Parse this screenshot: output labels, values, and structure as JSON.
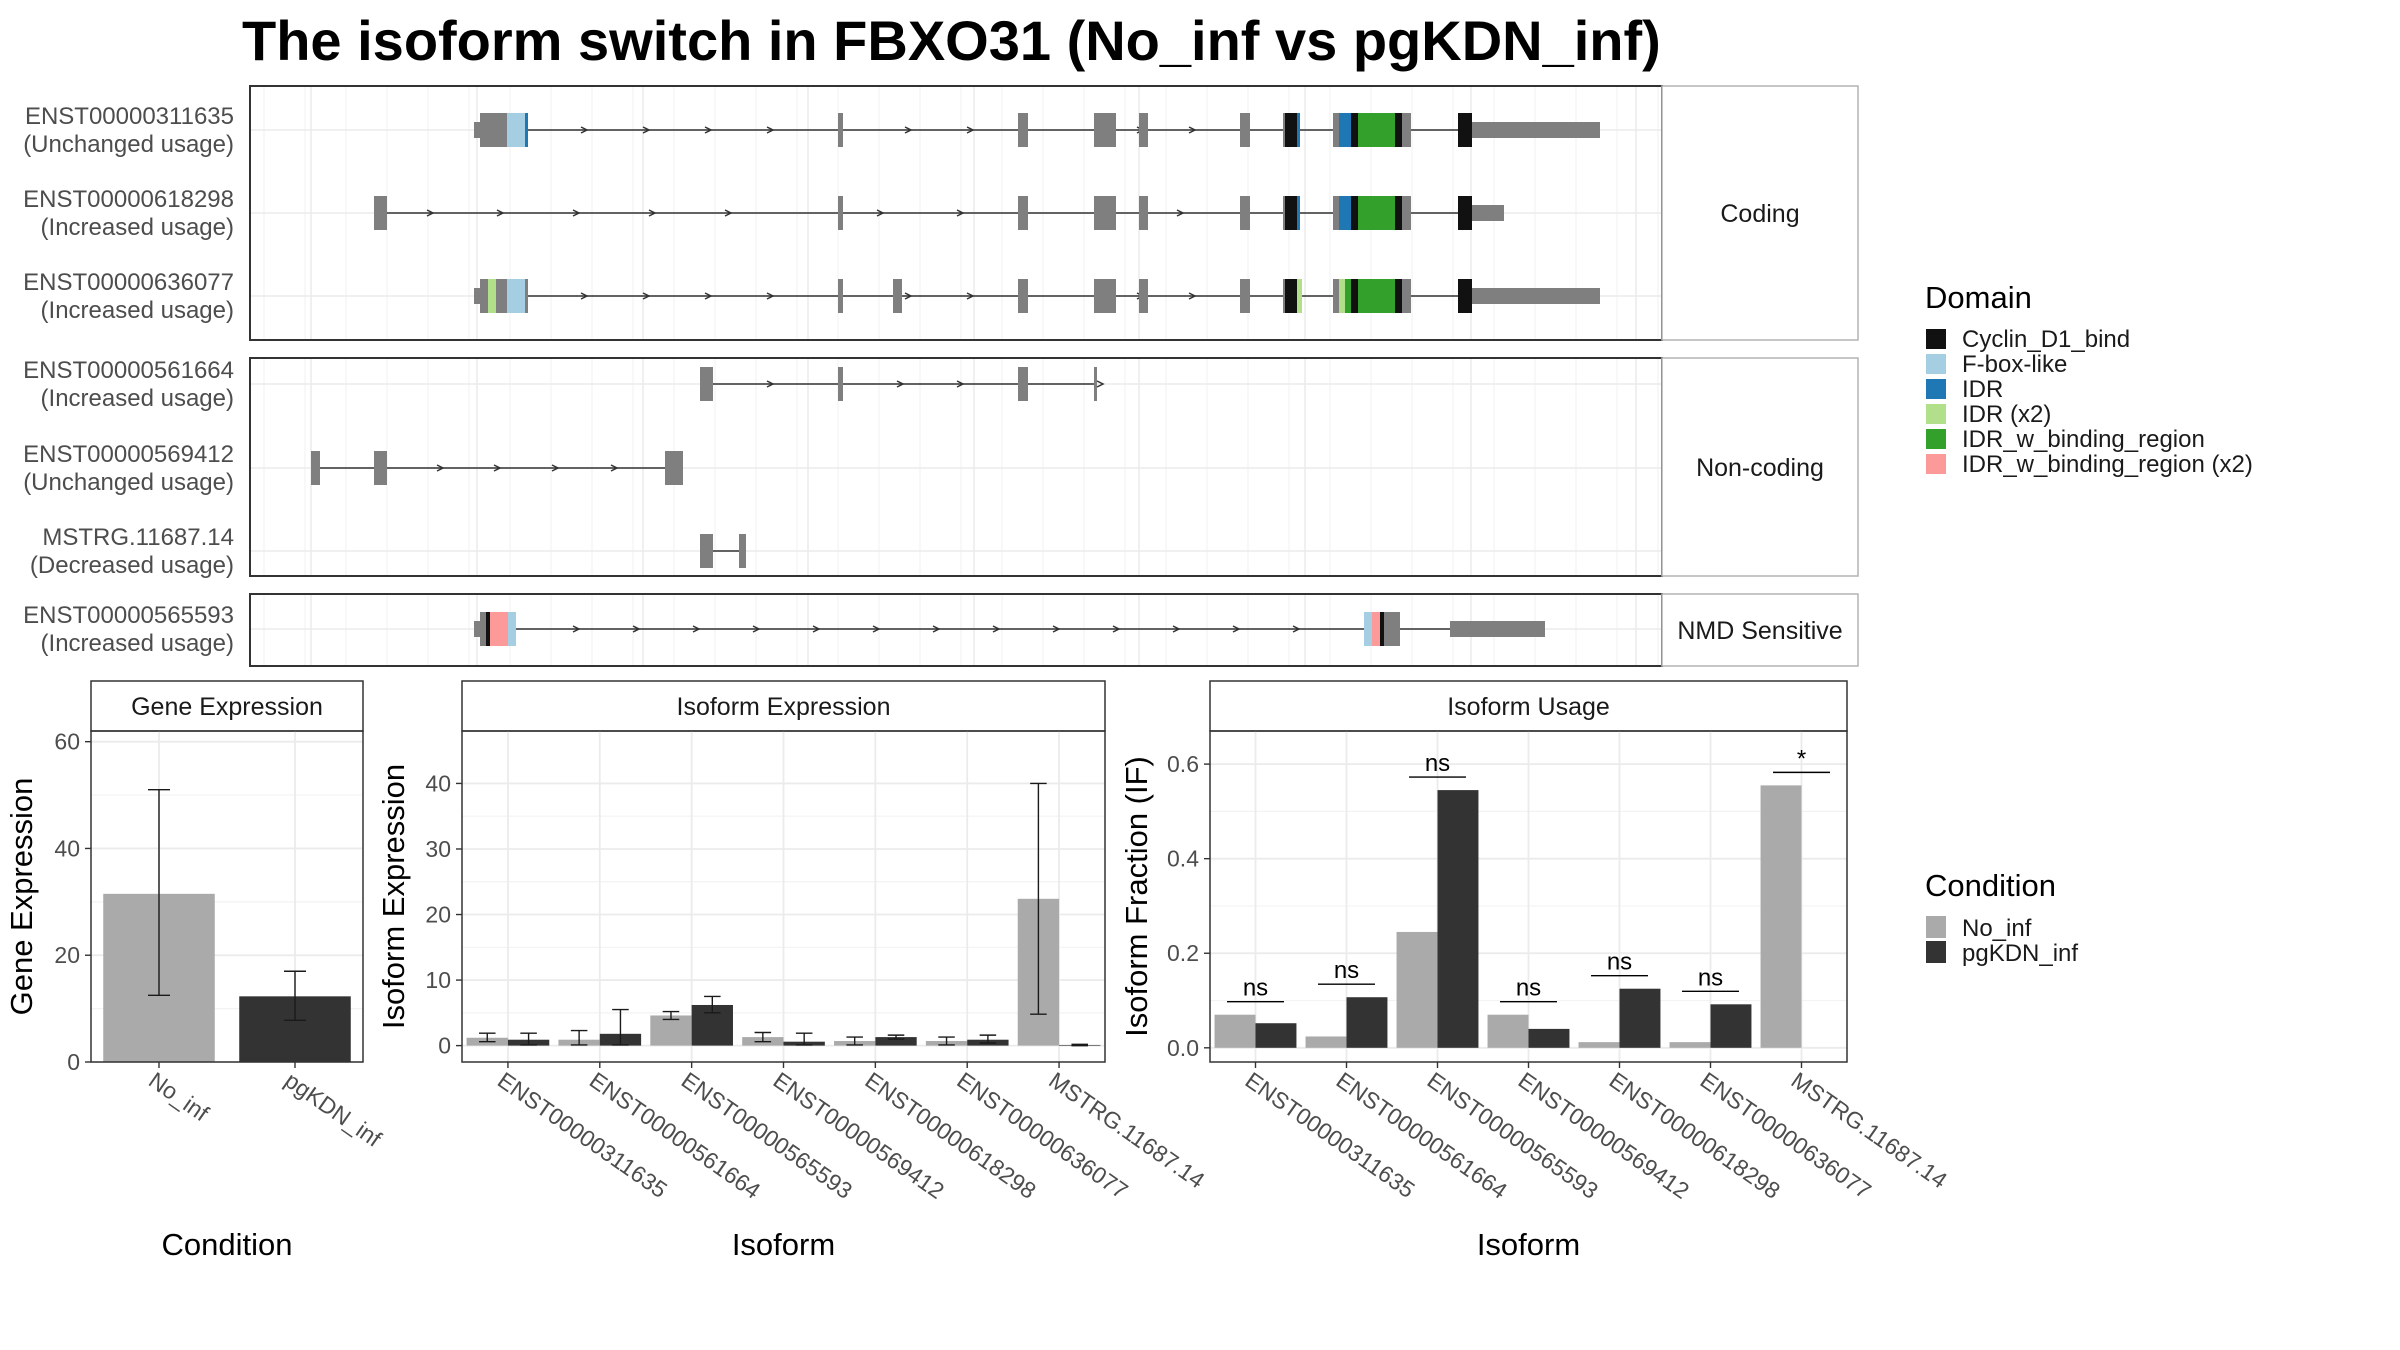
{
  "chart_data": [
    {
      "type": "isoform-structure",
      "title": "The isoform switch in FBXO31 (No_inf vs pgKDN_inf)",
      "groups": [
        {
          "label": "Coding",
          "transcripts": [
            {
              "id": "ENST00000311635",
              "status": "(Unchanged usage)"
            },
            {
              "id": "ENST00000618298",
              "status": "(Increased usage)"
            },
            {
              "id": "ENST00000636077",
              "status": "(Increased usage)"
            }
          ]
        },
        {
          "label": "Non-coding",
          "transcripts": [
            {
              "id": "ENST00000561664",
              "status": "(Increased usage)"
            },
            {
              "id": "ENST00000569412",
              "status": "(Unchanged usage)"
            },
            {
              "id": "MSTRG.11687.14",
              "status": "(Decreased usage)"
            }
          ]
        },
        {
          "label": "NMD Sensitive",
          "transcripts": [
            {
              "id": "ENST00000565593",
              "status": "(Increased usage)"
            }
          ]
        }
      ],
      "legend": {
        "title": "Domain",
        "items": [
          {
            "label": "Cyclin_D1_bind",
            "color": "#111111"
          },
          {
            "label": "F-box-like",
            "color": "#a6cee3"
          },
          {
            "label": "IDR",
            "color": "#1f78b4"
          },
          {
            "label": "IDR (x2)",
            "color": "#b2df8a"
          },
          {
            "label": "IDR_w_binding_region",
            "color": "#33a02c"
          },
          {
            "label": "IDR_w_binding_region (x2)",
            "color": "#fb9a99"
          }
        ]
      }
    },
    {
      "type": "bar",
      "title": "Gene Expression",
      "xlabel": "Condition",
      "ylabel": "Gene Expression",
      "ylim": [
        0,
        62
      ],
      "yticks": [
        0,
        20,
        40,
        60
      ],
      "categories": [
        "No_inf",
        "pgKDN_inf"
      ],
      "values": [
        31.5,
        12.3
      ],
      "error_low": [
        12.5,
        7.8
      ],
      "error_high": [
        51,
        17
      ],
      "colors": [
        "#aaaaaa",
        "#333333"
      ]
    },
    {
      "type": "bar",
      "title": "Isoform Expression",
      "xlabel": "Isoform",
      "ylabel": "Isoform Expression",
      "ylim": [
        -2.5,
        48
      ],
      "yticks": [
        0,
        10,
        20,
        30,
        40
      ],
      "categories": [
        "ENST00000311635",
        "ENST00000561664",
        "ENST00000565593",
        "ENST00000569412",
        "ENST00000618298",
        "ENST00000636077",
        "MSTRG.11687.14"
      ],
      "series": [
        {
          "name": "No_inf",
          "color": "#aaaaaa",
          "values": [
            1.2,
            0.9,
            4.6,
            1.3,
            0.7,
            0.7,
            22.4
          ],
          "error_low": [
            0.6,
            0.1,
            4.0,
            0.6,
            0.1,
            0.1,
            4.8
          ],
          "error_high": [
            1.9,
            2.3,
            5.2,
            2.0,
            1.3,
            1.3,
            40
          ]
        },
        {
          "name": "pgKDN_inf",
          "color": "#333333",
          "values": [
            0.9,
            1.8,
            6.2,
            0.6,
            1.3,
            0.9,
            0.1
          ],
          "error_low": [
            0.1,
            0.1,
            5.0,
            0.1,
            1.0,
            0.4,
            0.0
          ],
          "error_high": [
            1.9,
            5.5,
            7.5,
            1.9,
            1.6,
            1.6,
            0.2
          ]
        }
      ]
    },
    {
      "type": "bar",
      "title": "Isoform Usage",
      "xlabel": "Isoform",
      "ylabel": "Isoform Fraction (IF)",
      "ylim": [
        -0.03,
        0.67
      ],
      "yticks": [
        0.0,
        0.2,
        0.4,
        0.6
      ],
      "ytick_labels": [
        "0.0",
        "0.2",
        "0.4",
        "0.6"
      ],
      "categories": [
        "ENST00000311635",
        "ENST00000561664",
        "ENST00000565593",
        "ENST00000569412",
        "ENST00000618298",
        "ENST00000636077",
        "MSTRG.11687.14"
      ],
      "series": [
        {
          "name": "No_inf",
          "color": "#aaaaaa",
          "values": [
            0.07,
            0.024,
            0.245,
            0.07,
            0.012,
            0.012,
            0.555
          ]
        },
        {
          "name": "pgKDN_inf",
          "color": "#333333",
          "values": [
            0.052,
            0.107,
            0.545,
            0.04,
            0.125,
            0.092,
            0.0
          ]
        }
      ],
      "significance": [
        "ns",
        "ns",
        "ns",
        "ns",
        "ns",
        "ns",
        "*"
      ],
      "legend": {
        "title": "Condition",
        "items": [
          {
            "label": "No_inf",
            "color": "#aaaaaa"
          },
          {
            "label": "pgKDN_inf",
            "color": "#333333"
          }
        ]
      }
    }
  ]
}
